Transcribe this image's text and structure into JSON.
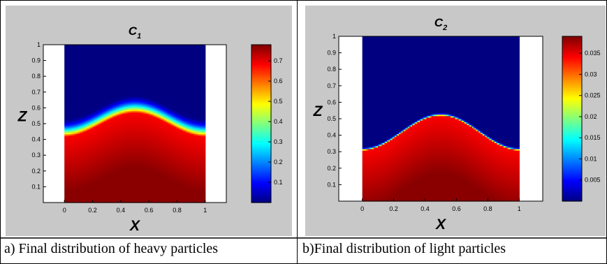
{
  "chart_data": [
    {
      "type": "heatmap",
      "title_main": "C",
      "title_sub": "1",
      "xlabel": "X",
      "ylabel": "Z",
      "xlim": [
        -0.15,
        1.15
      ],
      "ylim": [
        0,
        1
      ],
      "x_ticks": [
        "0",
        "0.2",
        "0.4",
        "0.6",
        "0.8",
        "1"
      ],
      "y_ticks": [
        "0.1",
        "0.2",
        "0.3",
        "0.4",
        "0.5",
        "0.6",
        "0.7",
        "0.8",
        "0.9",
        "1"
      ],
      "colorbar_ticks": [
        "0.1",
        "0.2",
        "0.3",
        "0.4",
        "0.5",
        "0.6",
        "0.7"
      ],
      "colorbar_range": [
        0,
        0.78
      ],
      "colormap": "jet",
      "field": {
        "interface_shape": "cosine",
        "interface_min": 0.42,
        "interface_max": 0.57,
        "interface_peak_x": 0.5,
        "transition_width": 0.12,
        "max_value": 0.78
      }
    },
    {
      "type": "heatmap",
      "title_main": "C",
      "title_sub": "2",
      "xlabel": "X",
      "ylabel": "Z",
      "xlim": [
        -0.15,
        1.15
      ],
      "ylim": [
        0,
        1
      ],
      "x_ticks": [
        "0",
        "0.2",
        "0.4",
        "0.6",
        "0.8",
        "1"
      ],
      "y_ticks": [
        "0.1",
        "0.2",
        "0.3",
        "0.4",
        "0.5",
        "0.6",
        "0.7",
        "0.8",
        "0.9",
        "1"
      ],
      "colorbar_ticks": [
        "0.005",
        "0.01",
        "0.015",
        "0.02",
        "0.025",
        "0.03",
        "0.035"
      ],
      "colorbar_range": [
        0,
        0.039
      ],
      "colormap": "jet",
      "field": {
        "interface_shape": "cosine",
        "interface_min": 0.31,
        "interface_max": 0.52,
        "interface_peak_x": 0.5,
        "transition_width": 0.02,
        "max_value": 0.039
      }
    }
  ],
  "captions": {
    "a": "a) Final distribution of heavy particles",
    "b": "b)Final distribution of light particles"
  },
  "colors": {
    "panel_background": "#c8c8c8",
    "border": "#000000"
  }
}
